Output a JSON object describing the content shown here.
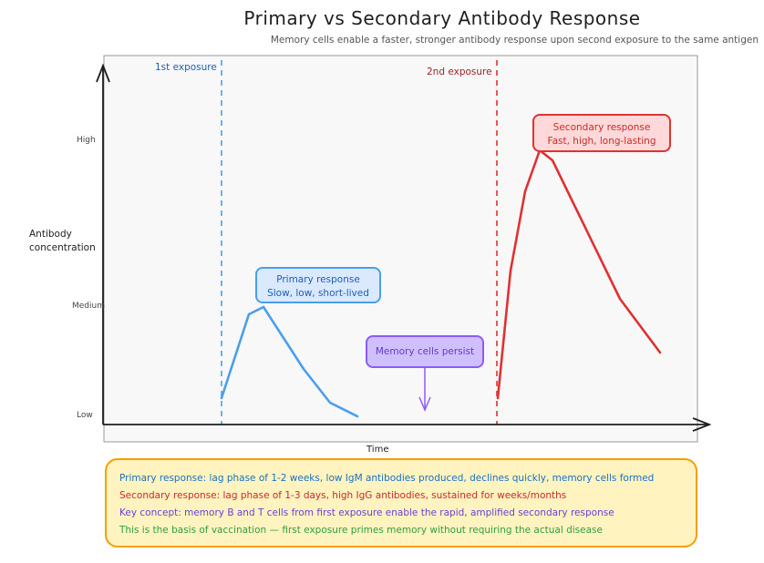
{
  "title": "Primary vs Secondary Antibody Response",
  "subtitle": "Memory cells enable a faster, stronger antibody response upon second exposure to the same antigen",
  "axes": {
    "ylabel_line1": "Antibody",
    "ylabel_line2": "concentration",
    "xlabel": "Time",
    "ticks": [
      "High",
      "Medium",
      "Low"
    ]
  },
  "exposures": {
    "first": "1st exposure",
    "second": "2nd exposure"
  },
  "callouts": {
    "primary_line1": "Primary response",
    "primary_line2": "Slow, low, short-lived",
    "secondary_line1": "Secondary response",
    "secondary_line2": "Fast, high, long-lasting",
    "memory": "Memory cells persist"
  },
  "notes": [
    "Primary response: lag phase of 1-2 weeks, low IgM antibodies produced, declines quickly, memory cells formed",
    "Secondary response: lag phase of 1-3 days, high IgG antibodies, sustained for weeks/months",
    "Key concept: memory B and T cells from first exposure enable the rapid, amplified secondary response",
    "This is the basis of vaccination — first exposure primes memory without requiring the actual disease"
  ],
  "colors": {
    "primary": "#4a9eed",
    "secondary": "#e03131",
    "memory": "#8b5cf6",
    "notes_fill": "#fff3bf",
    "notes_border": "#f59f00",
    "note_colors": [
      "#1971c2",
      "#c92a2a",
      "#6741d9",
      "#2f9e44"
    ]
  }
}
